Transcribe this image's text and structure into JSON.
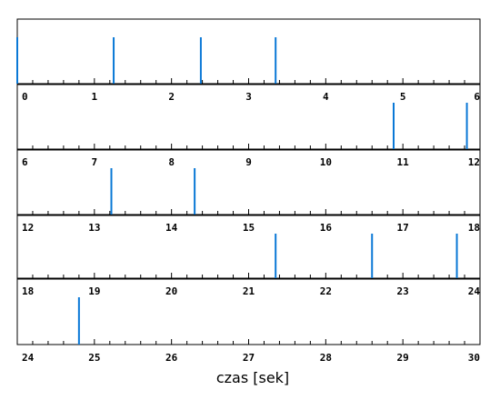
{
  "chart_data": {
    "type": "event-raster",
    "xlabel": "czas [sek]",
    "color": "#0a78d6",
    "panels": [
      {
        "xlim": [
          0,
          6
        ],
        "tick_labels": [
          "0",
          "1",
          "2",
          "3",
          "4",
          "5",
          "6"
        ],
        "events": [
          0.0,
          1.25,
          2.38,
          3.35
        ]
      },
      {
        "xlim": [
          6,
          12
        ],
        "tick_labels": [
          "6",
          "7",
          "8",
          "9",
          "10",
          "11",
          "12"
        ],
        "events": [
          10.88,
          11.83
        ]
      },
      {
        "xlim": [
          12,
          18
        ],
        "tick_labels": [
          "12",
          "13",
          "14",
          "15",
          "16",
          "17",
          "18"
        ],
        "events": [
          13.22,
          14.3
        ]
      },
      {
        "xlim": [
          18,
          24
        ],
        "tick_labels": [
          "18",
          "19",
          "20",
          "21",
          "22",
          "23",
          "24"
        ],
        "events": [
          21.35,
          22.6,
          23.7
        ]
      },
      {
        "xlim": [
          24,
          30
        ],
        "tick_labels": [
          "24",
          "25",
          "26",
          "27",
          "28",
          "29",
          "30"
        ],
        "events": [
          24.8
        ]
      }
    ]
  }
}
